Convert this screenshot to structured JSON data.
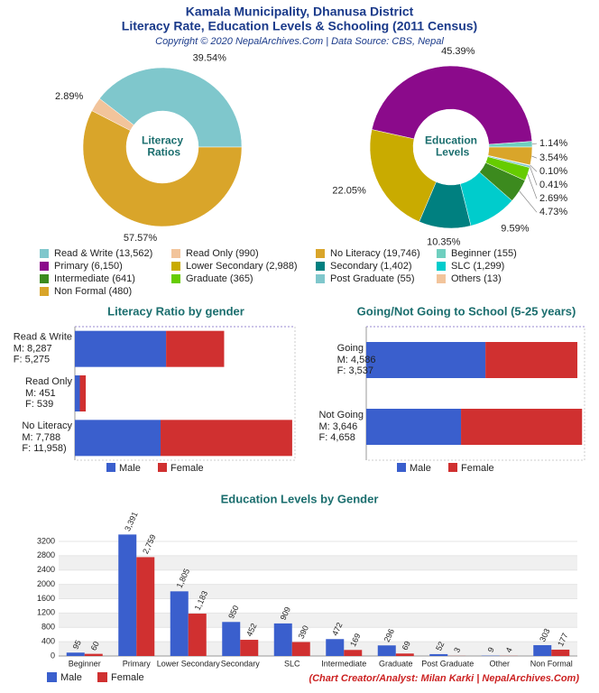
{
  "header": {
    "title": "Kamala Municipality, Dhanusa District",
    "subtitle": "Literacy Rate, Education Levels & Schooling (2011 Census)",
    "copyright": "Copyright © 2020 NepalArchives.Com | Data Source: CBS, Nepal"
  },
  "chart_data": [
    {
      "type": "pie",
      "center_label": "Literacy Ratios",
      "categories": [
        "Read & Write (13,562)",
        "Read Only (990)",
        "No Literacy (19,746)"
      ],
      "values": [
        39.54,
        2.89,
        57.57
      ],
      "value_labels": [
        "39.54%",
        "2.89%",
        "57.57%"
      ],
      "colors": [
        "#7fc7cc",
        "#f2c49b",
        "#d9a52a"
      ]
    },
    {
      "type": "pie",
      "center_label": "Education Levels",
      "categories": [
        "Beginner (155)",
        "Primary (6,150)",
        "Lower Secondary (2,988)",
        "Secondary (1,402)",
        "SLC (1,299)",
        "Intermediate (641)",
        "Graduate (365)",
        "Post Graduate (55)",
        "Others (13)",
        "Non Formal (480)"
      ],
      "values": [
        1.14,
        45.39,
        22.05,
        10.35,
        9.59,
        4.73,
        2.69,
        0.41,
        0.1,
        3.54
      ],
      "value_labels": [
        "1.14%",
        "45.39%",
        "22.05%",
        "10.35%",
        "9.59%",
        "4.73%",
        "2.69%",
        "0.41%",
        "0.10%",
        "3.54%"
      ],
      "colors": [
        "#6fcfbf",
        "#8b0a8b",
        "#c9ab00",
        "#008080",
        "#00cccc",
        "#3c8a1e",
        "#66cc00",
        "#7fc7cc",
        "#f2c49b",
        "#d9a52a"
      ]
    },
    {
      "type": "hbar",
      "title": "Literacy Ratio by gender",
      "stacked": true,
      "categories": [
        "Read & Write",
        "Read Only",
        "No Literacy"
      ],
      "series": [
        {
          "name": "Male",
          "color": "#3a5fcd",
          "values": [
            8287,
            451,
            7788
          ],
          "value_labels": [
            "M: 8,287",
            "M: 451",
            "M: 7,788"
          ]
        },
        {
          "name": "Female",
          "color": "#d03030",
          "values": [
            5275,
            539,
            11958
          ],
          "value_labels": [
            "F: 5,275",
            "F: 539",
            "F: 11,958)"
          ]
        }
      ],
      "xlim": [
        0,
        20000
      ]
    },
    {
      "type": "hbar",
      "title": "Going/Not Going to School (5-25 years)",
      "stacked": true,
      "categories": [
        "Going",
        "Not Going"
      ],
      "series": [
        {
          "name": "Male",
          "color": "#3a5fcd",
          "values": [
            4586,
            3646
          ],
          "value_labels": [
            "M: 4,586",
            "M: 3,646"
          ]
        },
        {
          "name": "Female",
          "color": "#d03030",
          "values": [
            3537,
            4658
          ],
          "value_labels": [
            "F: 3,537",
            "F: 4,658"
          ]
        }
      ],
      "xlim": [
        0,
        8400
      ]
    },
    {
      "type": "bar",
      "title": "Education Levels by Gender",
      "categories": [
        "Beginner",
        "Primary",
        "Lower Secondary",
        "Secondary",
        "SLC",
        "Intermediate",
        "Graduate",
        "Post Graduate",
        "Other",
        "Non Formal"
      ],
      "series": [
        {
          "name": "Male",
          "color": "#3a5fcd",
          "values": [
            95,
            3391,
            1805,
            950,
            909,
            472,
            296,
            52,
            9,
            303
          ],
          "value_labels": [
            "95",
            "3,391",
            "1,805",
            "950",
            "909",
            "472",
            "296",
            "52",
            "9",
            "303"
          ]
        },
        {
          "name": "Female",
          "color": "#d03030",
          "values": [
            60,
            2759,
            1183,
            452,
            390,
            169,
            69,
            3,
            4,
            177
          ],
          "value_labels": [
            "60",
            "2,759",
            "1,183",
            "452",
            "390",
            "169",
            "69",
            "3",
            "4",
            "177"
          ]
        }
      ],
      "ylim": [
        0,
        3400
      ],
      "yticks": [
        0,
        400,
        800,
        1200,
        1600,
        2000,
        2400,
        2800,
        3200
      ],
      "grid": true
    }
  ],
  "footer": "(Chart Creator/Analyst: Milan Karki | NepalArchives.Com)"
}
